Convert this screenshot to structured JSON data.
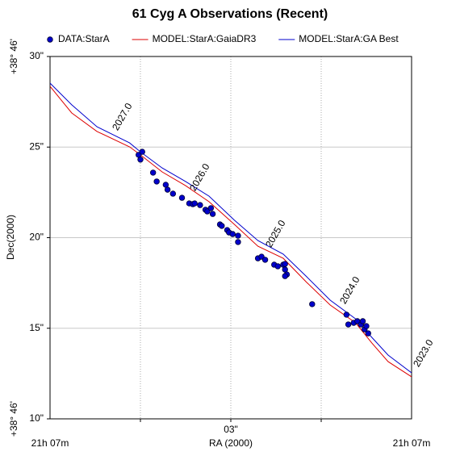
{
  "chart_data": {
    "type": "scatter",
    "title": "61 Cyg A Observations (Recent)",
    "x_label": "RA (2000)",
    "y_label": "Dec(2000)",
    "x_end_labels": [
      "21h 07m",
      "21h 07m"
    ],
    "y_end_labels": [
      "+38° 46'",
      "+38° 46'"
    ],
    "xlim": [
      4,
      2
    ],
    "ylim": [
      10,
      30
    ],
    "xticks": [
      {
        "value": 3.5,
        "label": null
      },
      {
        "value": 3,
        "label": "03\""
      },
      {
        "value": 2.5,
        "label": null
      }
    ],
    "yticks": [
      {
        "value": 10,
        "label": "10\""
      },
      {
        "value": 15,
        "label": "15\""
      },
      {
        "value": 20,
        "label": "20\""
      },
      {
        "value": 25,
        "label": "25\""
      },
      {
        "value": 30,
        "label": "30\""
      }
    ],
    "grid": true,
    "annotations": [
      "2027.0",
      "2026.0",
      "2025.0",
      "2024.0",
      "2023.0"
    ],
    "series": [
      {
        "name": "DATA:StarA",
        "type": "scatter",
        "color": "#0000cc",
        "x": [
          3.51,
          3.49,
          3.5,
          3.43,
          3.41,
          3.36,
          3.35,
          3.32,
          3.27,
          3.23,
          3.21,
          3.2,
          3.17,
          3.14,
          3.13,
          3.11,
          3.1,
          3.06,
          3.05,
          3.02,
          3.01,
          2.99,
          2.96,
          2.96,
          2.85,
          2.83,
          2.81,
          2.76,
          2.74,
          2.71,
          2.7,
          2.7,
          2.69,
          2.7,
          2.55,
          2.36,
          2.35,
          2.32,
          2.3,
          2.28,
          2.27,
          2.26,
          2.25,
          2.24
        ],
        "values": [
          24.57,
          24.74,
          24.31,
          23.59,
          23.1,
          22.92,
          22.65,
          22.43,
          22.2,
          21.89,
          21.85,
          21.89,
          21.8,
          21.54,
          21.45,
          21.63,
          21.31,
          20.73,
          20.65,
          20.42,
          20.29,
          20.2,
          20.11,
          19.76,
          18.86,
          18.95,
          18.78,
          18.51,
          18.42,
          18.51,
          18.55,
          18.24,
          17.97,
          17.88,
          16.33,
          15.75,
          15.21,
          15.3,
          15.39,
          15.21,
          15.39,
          14.94,
          15.12,
          14.72
        ]
      },
      {
        "name": "MODEL:StarA:GaiaDR3",
        "type": "line",
        "color": "#dd0000",
        "x": [
          4.0,
          3.88,
          3.74,
          3.56,
          3.5,
          3.38,
          3.25,
          3.12,
          2.98,
          2.85,
          2.71,
          2.58,
          2.45,
          2.31,
          2.22,
          2.13,
          2.0
        ],
        "values": [
          28.35,
          26.88,
          25.86,
          25.01,
          24.57,
          23.63,
          22.87,
          21.98,
          20.73,
          19.53,
          18.86,
          17.53,
          16.28,
          15.3,
          14.19,
          13.16,
          12.32
        ]
      },
      {
        "name": "MODEL:StarA:GA Best",
        "type": "line",
        "color": "#0000cc",
        "x": [
          4.0,
          3.88,
          3.74,
          3.56,
          3.5,
          3.38,
          3.25,
          3.12,
          2.98,
          2.85,
          2.71,
          2.58,
          2.45,
          2.31,
          2.22,
          2.13,
          2.0
        ],
        "values": [
          28.53,
          27.33,
          26.12,
          25.23,
          24.74,
          23.85,
          23.1,
          22.29,
          20.96,
          19.84,
          19.09,
          17.84,
          16.55,
          15.52,
          14.5,
          13.52,
          12.54
        ]
      }
    ]
  }
}
